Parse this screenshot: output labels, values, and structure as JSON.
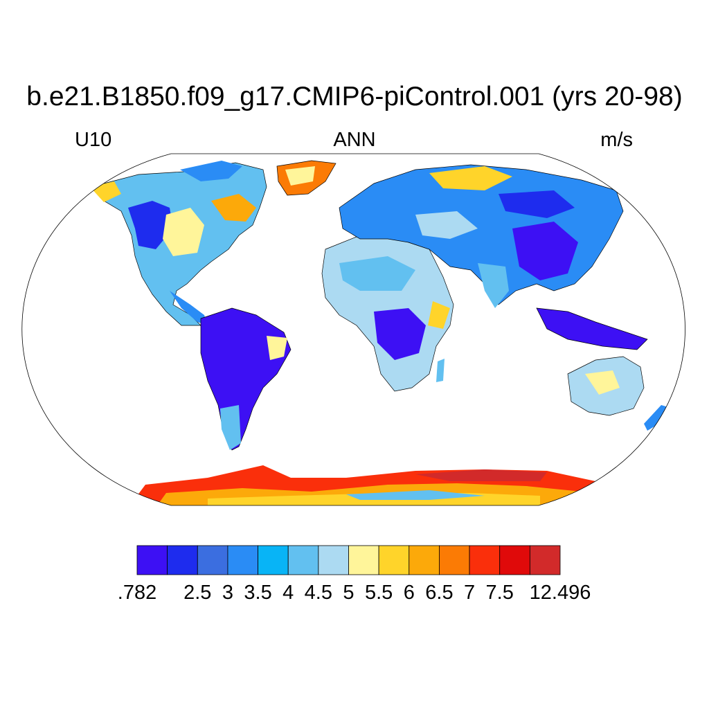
{
  "title": "b.e21.B1850.f09_g17.CMIP6-piControl.001 (yrs 20-98)",
  "left_label": "U10",
  "center_label": "ANN",
  "right_label": "m/s",
  "colorbar": {
    "colors": [
      "#3d10f4",
      "#1e2cee",
      "#3b6ee0",
      "#2a8cf5",
      "#08b4f6",
      "#62c0f0",
      "#acdaf2",
      "#fff59a",
      "#ffd42a",
      "#fca90a",
      "#fb7b05",
      "#fa2f0b",
      "#e00a0a",
      "#d22a2a"
    ],
    "labels": [
      ".782",
      "2.5",
      "3",
      "3.5",
      "4",
      "4.5",
      "5",
      "5.5",
      "6",
      "6.5",
      "7",
      "7.5",
      "12.496"
    ],
    "label_positions": [
      0,
      2,
      3,
      4,
      5,
      6,
      7,
      8,
      9,
      10,
      11,
      12,
      14
    ]
  }
}
